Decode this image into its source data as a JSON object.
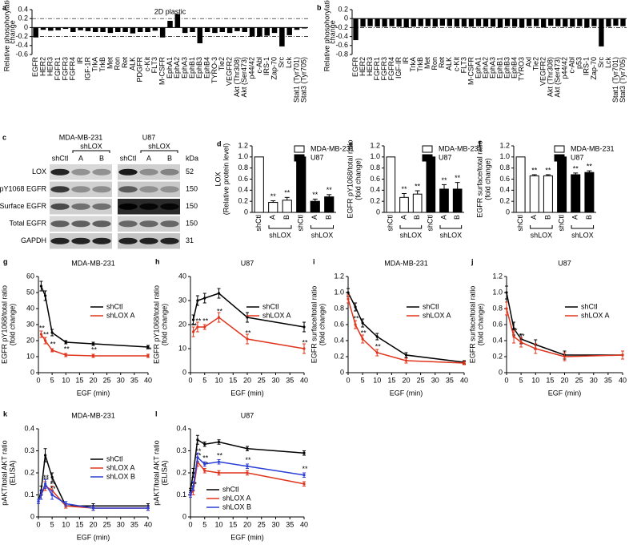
{
  "chart_data": [
    {
      "label": "a",
      "type": "bar",
      "title": "2D plastic",
      "ylabel": [
        "Relative phosphorylation",
        "change"
      ],
      "categories": [
        "EGFR",
        "HER2",
        "HER3",
        "FGFR1",
        "FGFR3",
        "FGFR4",
        "IR",
        "IGF-1R",
        "TrkA",
        "TrkB",
        "Met",
        "Ron",
        "Ret",
        "ALK",
        "PDGFR",
        "c-Kit",
        "FLT3",
        "M-CSFR",
        "EphA1",
        "EphA2",
        "EphA3",
        "EphB1",
        "EphB3",
        "EphB4",
        "TYRO-3",
        "Tie2",
        "VEGFR2",
        "Akt (Thr308)",
        "Akt (Ser473)",
        "p44/42",
        "c-Abl",
        "IRS-1",
        "Zap-70",
        "Src",
        "Lck",
        "Stat1 (Tyr701)",
        "Stat3 (Tyr705)"
      ],
      "values": [
        -0.22,
        -0.05,
        -0.07,
        -0.06,
        -0.03,
        -0.1,
        -0.06,
        -0.08,
        -0.1,
        -0.1,
        -0.12,
        -0.1,
        -0.1,
        -0.13,
        -0.1,
        -0.1,
        -0.07,
        -0.22,
        0.15,
        0.3,
        -0.12,
        -0.1,
        -0.35,
        -0.1,
        -0.12,
        -0.1,
        -0.12,
        -0.08,
        -0.1,
        -0.2,
        -0.2,
        -0.18,
        -0.12,
        -0.42,
        -0.17,
        -0.05,
        -0.02
      ],
      "color": "#000000",
      "ylim": [
        -0.6,
        0.4
      ],
      "yticks": [
        -0.6,
        -0.4,
        -0.2,
        0,
        0.2,
        0.4
      ],
      "reference_lines": [
        0.2,
        -0.2
      ]
    },
    {
      "label": "b",
      "type": "bar",
      "ylabel": [
        "Relative phosphorylation",
        "change"
      ],
      "categories": [
        "EGFR",
        "HER2",
        "HER3",
        "FGFR1",
        "FGFR3",
        "FGFR4",
        "IGF-IR",
        "IR",
        "TrkA",
        "TrkB",
        "Met",
        "Ron",
        "Ret",
        "ALK",
        "c-Kit",
        "FLT3",
        "M-CSFR",
        "EphA1",
        "EphA2",
        "EphA3",
        "EphB1",
        "EphB3",
        "EphB4",
        "TYRO3",
        "Axl",
        "Tie2",
        "VEGFR2",
        "Akt (Thr308)",
        "Akt (Ser473)",
        "p44/42",
        "c-Abl",
        "p53",
        "IRS-1",
        "Zap-70",
        "Src",
        "Lck",
        "Stat1 (Tyr701)",
        "Stat3 (Tyr705)"
      ],
      "values": [
        -0.48,
        -0.18,
        -0.17,
        -0.18,
        -0.18,
        -0.17,
        -0.18,
        -0.2,
        -0.18,
        -0.17,
        -0.17,
        -0.18,
        -0.16,
        -0.17,
        -0.18,
        -0.18,
        -0.18,
        -0.17,
        -0.18,
        -0.18,
        -0.2,
        -0.17,
        -0.18,
        -0.2,
        -0.17,
        -0.17,
        -0.2,
        -0.16,
        -0.17,
        -0.18,
        -0.18,
        -0.17,
        -0.2,
        -0.17,
        -0.62,
        -0.18,
        -0.16,
        -0.17
      ],
      "color": "#000000",
      "ylim": [
        -0.8,
        0.2
      ],
      "yticks": [
        -0.8,
        -0.6,
        -0.4,
        -0.2,
        0,
        0.2
      ],
      "reference_lines": [
        -0.2
      ]
    },
    {
      "label": "d",
      "type": "bar",
      "ylabel": [
        "LOX",
        "(Relative protein level)"
      ],
      "categories": [
        "shCtl",
        "A",
        "B",
        "shCtl",
        "A",
        "B"
      ],
      "group_label": "shLOX",
      "legend": "upper right",
      "series": [
        {
          "name": "MDA-MB-231",
          "color": "#ffffff",
          "values": [
            1,
            0.18,
            0.22,
            null,
            null,
            null
          ],
          "errors": [
            null,
            0.03,
            0.05,
            null,
            null,
            null
          ],
          "stars": [
            null,
            "**",
            "**",
            null,
            null,
            null
          ]
        },
        {
          "name": "U87",
          "color": "#000000",
          "values": [
            null,
            null,
            null,
            1,
            0.2,
            0.28
          ],
          "errors": [
            null,
            null,
            null,
            null,
            0.04,
            0.04
          ],
          "stars": [
            null,
            null,
            null,
            null,
            "**",
            "**"
          ]
        }
      ],
      "ylim": [
        0,
        1.2
      ],
      "yticks": [
        0,
        0.2,
        0.4,
        0.6,
        0.8,
        {
          "value": 1,
          "label": "1.0"
        },
        1.2
      ]
    },
    {
      "label": "e",
      "type": "bar",
      "ylabel": [
        "EGFR pY1068/total ratio",
        "(fold change)"
      ],
      "categories": [
        "shCtl",
        "A",
        "B",
        "shCtl",
        "A",
        "B"
      ],
      "group_label": "shLOX",
      "legend": "upper right",
      "series": [
        {
          "name": "MDA-MB-231",
          "color": "#ffffff",
          "values": [
            1,
            0.27,
            0.33,
            null,
            null,
            null
          ],
          "errors": [
            null,
            0.07,
            0.06,
            null,
            null,
            null
          ],
          "stars": [
            null,
            "**",
            "**",
            null,
            null,
            null
          ]
        },
        {
          "name": "U87",
          "color": "#000000",
          "values": [
            null,
            null,
            null,
            1,
            0.42,
            0.42
          ],
          "errors": [
            null,
            null,
            null,
            null,
            0.08,
            0.12
          ],
          "stars": [
            null,
            null,
            null,
            null,
            "**",
            "**"
          ]
        }
      ],
      "ylim": [
        0,
        1.2
      ],
      "yticks": [
        0,
        0.2,
        0.4,
        0.6,
        0.8,
        {
          "value": 1,
          "label": "1.0"
        },
        1.2
      ]
    },
    {
      "label": "f",
      "type": "bar",
      "ylabel": [
        "EGFR surface/total ratio",
        "(fold change)"
      ],
      "categories": [
        "shCtl",
        "A",
        "B",
        "shCtl",
        "A",
        "B"
      ],
      "group_label": "shLOX",
      "legend": "upper right",
      "series": [
        {
          "name": "MDA-MB-231",
          "color": "#ffffff",
          "values": [
            1,
            0.66,
            0.66,
            null,
            null,
            null
          ],
          "errors": [
            null,
            0.02,
            0.02,
            null,
            null,
            null
          ],
          "stars": [
            null,
            "**",
            "**",
            null,
            null,
            null
          ]
        },
        {
          "name": "U87",
          "color": "#000000",
          "values": [
            null,
            null,
            null,
            1,
            0.68,
            0.72
          ],
          "errors": [
            null,
            null,
            null,
            null,
            0.03,
            0.03
          ],
          "stars": [
            null,
            null,
            null,
            null,
            "**",
            "**"
          ]
        }
      ],
      "ylim": [
        0,
        1.2
      ],
      "yticks": [
        0,
        0.2,
        0.4,
        0.6,
        0.8,
        {
          "value": 1,
          "label": "1.0"
        },
        1.2
      ]
    },
    {
      "label": "g",
      "type": "line",
      "title": "MDA-MB-231",
      "ylabel": [
        "EGFR pY1068/total ratio",
        "(fold change)"
      ],
      "xlabel": "EGF (min)",
      "legend": "upper right",
      "x": [
        1,
        2.5,
        5,
        10,
        20,
        40
      ],
      "series": [
        {
          "name": "shCtl",
          "color": "#000000",
          "values": [
            54,
            48,
            25,
            19,
            18,
            16
          ],
          "errors": [
            3,
            3,
            2,
            1,
            1,
            1
          ]
        },
        {
          "name": "shLOX A",
          "color": "#e0341c",
          "values": [
            24,
            20,
            14,
            11,
            10.5,
            10.5
          ],
          "errors": [
            2,
            2,
            1,
            1,
            1,
            1
          ],
          "stars": [
            "**",
            "**",
            "**",
            "**",
            "**",
            "**"
          ]
        }
      ],
      "xlim": [
        0,
        40
      ],
      "xticks": [
        0,
        5,
        10,
        15,
        20,
        25,
        30,
        35,
        40
      ],
      "ylim": [
        0,
        60
      ],
      "yticks": [
        0,
        10,
        20,
        30,
        40,
        50,
        60
      ]
    },
    {
      "label": "h",
      "type": "line",
      "title": "U87",
      "ylabel": [
        "EGFR pY1068/total ratio",
        "(fold change)"
      ],
      "xlabel": "EGF (min)",
      "legend": "upper right",
      "x": [
        1,
        2.5,
        5,
        10,
        20,
        40
      ],
      "series": [
        {
          "name": "shCtl",
          "color": "#000000",
          "values": [
            22,
            30,
            31,
            33,
            23,
            19
          ],
          "errors": [
            2,
            2,
            2,
            2,
            2,
            2
          ]
        },
        {
          "name": "shLOX A",
          "color": "#e0341c",
          "values": [
            17,
            19,
            19,
            23,
            14,
            10
          ],
          "errors": [
            2,
            2,
            1,
            2,
            2,
            2
          ],
          "stars": [
            "**",
            "**",
            "**",
            "**",
            "**",
            "**"
          ]
        }
      ],
      "xlim": [
        0,
        40
      ],
      "xticks": [
        0,
        5,
        10,
        15,
        20,
        25,
        30,
        35,
        40
      ],
      "ylim": [
        0,
        40
      ],
      "yticks": [
        0,
        10,
        20,
        30,
        40
      ]
    },
    {
      "label": "i",
      "type": "line",
      "title": "MDA-MB-231",
      "ylabel": [
        "EGFR surface/total ratio",
        "(fold change)"
      ],
      "xlabel": "EGF (min)",
      "legend": "upper right",
      "x": [
        0,
        2.5,
        5,
        10,
        20,
        40
      ],
      "series": [
        {
          "name": "shCtl",
          "color": "#000000",
          "values": [
            1,
            0.82,
            0.62,
            0.45,
            0.22,
            0.13
          ],
          "errors": [
            0.05,
            0.05,
            0.05,
            0.04,
            0.03,
            0.02
          ]
        },
        {
          "name": "shLOX A",
          "color": "#e0341c",
          "values": [
            0.92,
            0.6,
            0.42,
            0.25,
            0.15,
            0.12
          ],
          "errors": [
            0.05,
            0.05,
            0.05,
            0.04,
            0.03,
            0.02
          ],
          "stars": [
            null,
            "**",
            "**",
            "**",
            null,
            null
          ]
        }
      ],
      "xlim": [
        0,
        40
      ],
      "xticks": [
        0,
        5,
        10,
        15,
        20,
        25,
        30,
        35,
        40
      ],
      "ylim": [
        0,
        1.2
      ],
      "yticks": [
        0,
        0.2,
        0.4,
        0.6,
        0.8,
        {
          "value": 1,
          "label": "1.0"
        },
        1.2
      ]
    },
    {
      "label": "j",
      "type": "line",
      "title": "U87",
      "ylabel": [
        "EGFR surface/total ratio",
        "(fold change)"
      ],
      "xlabel": "EGF (min)",
      "legend": "upper right",
      "x": [
        0,
        2.5,
        5,
        10,
        20,
        40
      ],
      "series": [
        {
          "name": "shCtl",
          "color": "#000000",
          "values": [
            1,
            0.55,
            0.42,
            0.35,
            0.22,
            0.22
          ],
          "errors": [
            0.08,
            0.08,
            0.06,
            0.06,
            0.05,
            0.05
          ]
        },
        {
          "name": "shLOX A",
          "color": "#e0341c",
          "values": [
            0.8,
            0.45,
            0.38,
            0.3,
            0.2,
            0.22
          ],
          "errors": [
            0.08,
            0.08,
            0.06,
            0.06,
            0.05,
            0.05
          ],
          "stars": [
            null,
            "**",
            "**",
            null,
            null,
            null
          ]
        }
      ],
      "xlim": [
        0,
        40
      ],
      "xticks": [
        0,
        5,
        10,
        15,
        20,
        25,
        30,
        35,
        40
      ],
      "ylim": [
        0,
        1.2
      ],
      "yticks": [
        0,
        0.2,
        0.4,
        0.6,
        0.8,
        {
          "value": 1,
          "label": "1.0"
        },
        1.2
      ]
    },
    {
      "label": "k",
      "type": "line",
      "title": "MDA-MB-231",
      "ylabel": [
        "pAKT/total AKT ratio",
        "(ELISA)"
      ],
      "xlabel": "EGF (min)",
      "legend": "upper right",
      "x": [
        0,
        1,
        2.5,
        5,
        10,
        20,
        40
      ],
      "series": [
        {
          "name": "shCtl",
          "color": "#000000",
          "values": [
            0.07,
            0.12,
            0.28,
            0.18,
            0.05,
            0.05,
            0.05
          ],
          "errors": [
            0.01,
            0.02,
            0.03,
            0.02,
            0.01,
            0.01,
            0.01
          ]
        },
        {
          "name": "shLOX A",
          "color": "#e0341c",
          "values": [
            0.07,
            0.1,
            0.14,
            0.12,
            0.05,
            0.04,
            0.04
          ],
          "errors": [
            0.01,
            0.02,
            0.02,
            0.02,
            0.01,
            0.01,
            0.01
          ],
          "stars": [
            null,
            null,
            "**",
            "**",
            null,
            null,
            null
          ]
        },
        {
          "name": "shLOX B",
          "color": "#2b3fd6",
          "values": [
            0.07,
            0.1,
            0.15,
            0.1,
            0.06,
            0.04,
            0.04
          ],
          "errors": [
            0.01,
            0.02,
            0.02,
            0.02,
            0.01,
            0.01,
            0.01
          ],
          "stars": [
            null,
            null,
            "**",
            "**",
            null,
            null,
            null
          ]
        }
      ],
      "xlim": [
        0,
        40
      ],
      "xticks": [
        0,
        5,
        10,
        15,
        20,
        25,
        30,
        35,
        40
      ],
      "ylim": [
        0,
        0.4
      ],
      "yticks": [
        0,
        0.1,
        0.2,
        0.3,
        0.4
      ]
    },
    {
      "label": "l",
      "type": "line",
      "title": "U87",
      "ylabel": [
        "pAKT/total AKT ratio",
        "(ELISA)"
      ],
      "xlabel": "EGF (min)",
      "legend": "lower left",
      "x": [
        0,
        1,
        2.5,
        5,
        10,
        20,
        40
      ],
      "series": [
        {
          "name": "shCtl",
          "color": "#000000",
          "values": [
            0.12,
            0.2,
            0.35,
            0.33,
            0.34,
            0.31,
            0.29
          ],
          "errors": [
            0.01,
            0.02,
            0.02,
            0.01,
            0.01,
            0.01,
            0.01
          ]
        },
        {
          "name": "shLOX A",
          "color": "#e0341c",
          "values": [
            0.1,
            0.12,
            0.25,
            0.21,
            0.2,
            0.2,
            0.15
          ],
          "errors": [
            0.01,
            0.02,
            0.02,
            0.01,
            0.01,
            0.01,
            0.01
          ],
          "stars": [
            null,
            "**",
            "**",
            "**",
            null,
            null,
            null
          ]
        },
        {
          "name": "shLOX B",
          "color": "#2b3fd6",
          "values": [
            0.1,
            0.14,
            0.27,
            0.24,
            0.25,
            0.23,
            0.19
          ],
          "errors": [
            0.01,
            0.02,
            0.02,
            0.01,
            0.01,
            0.01,
            0.01
          ],
          "stars": [
            null,
            null,
            "**",
            "**",
            "**",
            "**",
            "**"
          ]
        }
      ],
      "xlim": [
        0,
        40
      ],
      "xticks": [
        0,
        5,
        10,
        15,
        20,
        25,
        30,
        35,
        40
      ],
      "ylim": [
        0,
        0.4
      ],
      "yticks": [
        0,
        0.1,
        0.2,
        0.3,
        0.4
      ]
    }
  ],
  "blot": {
    "label": "c",
    "cell_lines": [
      "MDA-MB-231",
      "U87"
    ],
    "group_label": "shLOX",
    "lanes": [
      "shCtl",
      "A",
      "B"
    ],
    "unit": "kDa",
    "rows": [
      {
        "name": "LOX",
        "kda": 52
      },
      {
        "name": "pY1068 EGFR",
        "kda": 150
      },
      {
        "name": "Surface EGFR",
        "kda": 150
      },
      {
        "name": "Total EGFR",
        "kda": 150
      },
      {
        "name": "GAPDH",
        "kda": 31
      }
    ]
  }
}
